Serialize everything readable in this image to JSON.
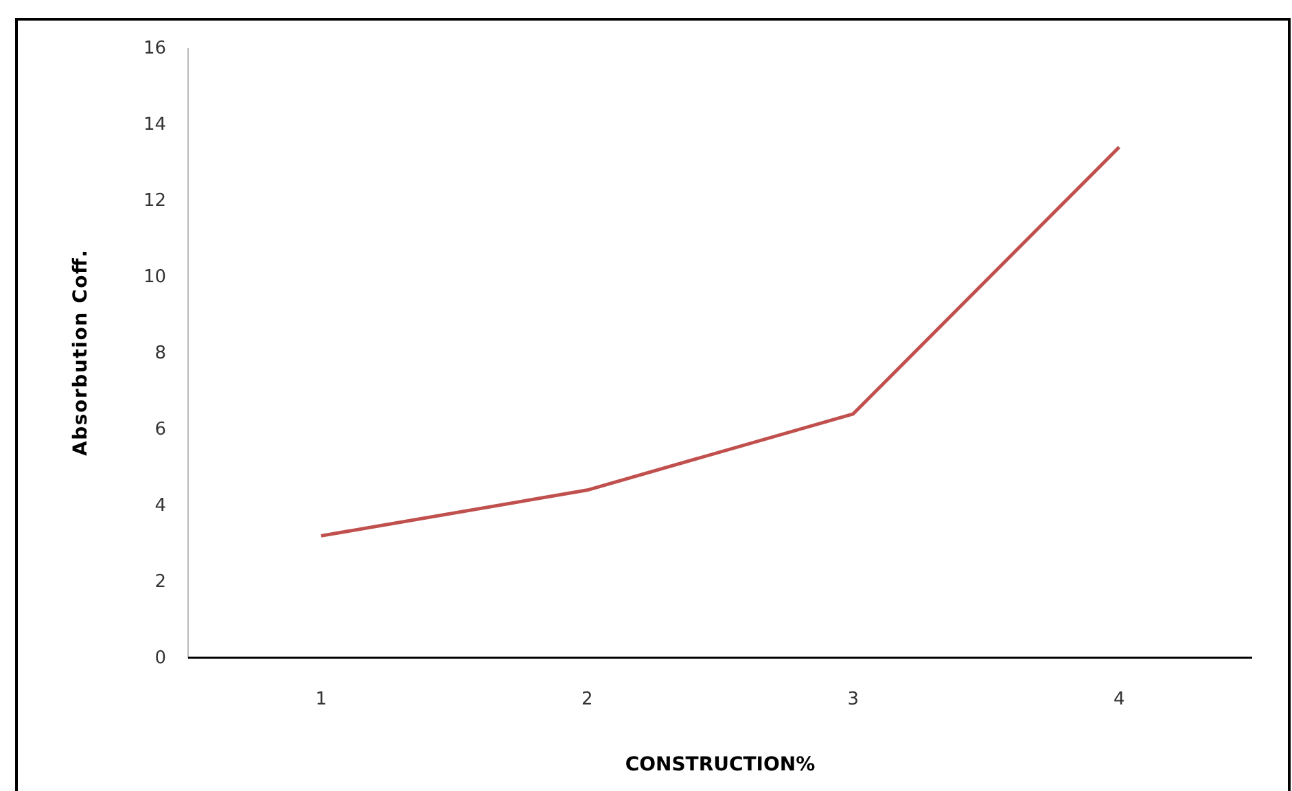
{
  "chart_data": {
    "type": "line",
    "xlabel": "CONSTRUCTION%",
    "ylabel": "Absorbution Coff.",
    "categories": [
      "1",
      "2",
      "3",
      "4"
    ],
    "series": [
      {
        "color": "#c0504d",
        "values": [
          3.2,
          4.4,
          6.4,
          13.4
        ]
      }
    ],
    "ylim": [
      0,
      16
    ],
    "yticks": [
      0,
      2,
      4,
      6,
      8,
      10,
      12,
      14,
      16
    ],
    "grid": false,
    "marker": "none",
    "line_style": "solid"
  }
}
